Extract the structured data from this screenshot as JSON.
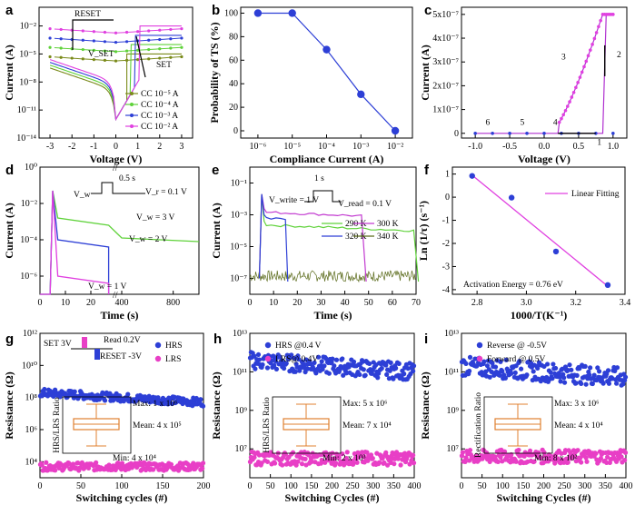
{
  "panels": {
    "a": "a",
    "b": "b",
    "c": "c",
    "d": "d",
    "e": "e",
    "f": "f",
    "g": "g",
    "h": "h",
    "i": "i"
  },
  "chart_data": [
    {
      "id": "a",
      "type": "line",
      "xlabel": "Voltage (V)",
      "ylabel": "Current (A)",
      "xlim": [
        -3.5,
        3.5
      ],
      "ylim_log10": [
        -14,
        0
      ],
      "xticks": [
        "-3",
        "-2",
        "-1",
        "0",
        "1",
        "2",
        "3"
      ],
      "yticks": [
        "10⁻¹⁴",
        "10⁻¹¹",
        "10⁻⁸",
        "10⁻⁵",
        "10⁻²"
      ],
      "annotations": [
        "RESET",
        "SET",
        "V_SET"
      ],
      "series": [
        {
          "name": "CC 10⁻⁵ A",
          "color": "#7a8a1a",
          "set_voltage": 0.5,
          "cc_log10": -5
        },
        {
          "name": "CC 10⁻⁴ A",
          "color": "#5fd23a",
          "set_voltage": 0.7,
          "cc_log10": -4
        },
        {
          "name": "CC 10⁻³ A",
          "color": "#2d3fd6",
          "set_voltage": 0.9,
          "cc_log10": -3
        },
        {
          "name": "CC 10⁻² A",
          "color": "#e040e0",
          "set_voltage": 1.1,
          "cc_log10": -2
        }
      ]
    },
    {
      "id": "b",
      "type": "line",
      "xlabel": "Compliance Current (A)",
      "ylabel": "Probability of TS (%)",
      "xtick_labels": [
        "10⁻⁶",
        "10⁻⁵",
        "10⁻⁴",
        "10⁻³",
        "10⁻²"
      ],
      "yticks": [
        "0",
        "20",
        "40",
        "60",
        "80",
        "100"
      ],
      "ylim": [
        0,
        100
      ],
      "x_log10": [
        -6,
        -5,
        -4,
        -3,
        -2
      ],
      "y": [
        100,
        100,
        69,
        31,
        0
      ]
    },
    {
      "id": "c",
      "type": "line",
      "xlabel": "Voltage (V)",
      "ylabel": "Current (A)",
      "xlim": [
        -1.2,
        1.2
      ],
      "ylim": [
        -2e-08,
        5.3e-07
      ],
      "xticks": [
        "-1.0",
        "-0.5",
        "0.0",
        "0.5",
        "1.0"
      ],
      "yticks": [
        "0",
        "1x10⁻⁷",
        "2x10⁻⁷",
        "3x10⁻⁷",
        "4x10⁻⁷",
        "5x10⁻⁷"
      ],
      "arrows": [
        "1",
        "2",
        "3",
        "4",
        "5",
        "6"
      ],
      "compliance": 5e-07,
      "switch_on_voltage": 0.9,
      "switch_off_voltage": 0.2
    },
    {
      "id": "d",
      "type": "line",
      "xlabel": "Time (s)",
      "ylabel": "Current (A)",
      "ylim_log10": [
        -7,
        0
      ],
      "yticks": [
        "10⁰",
        "10⁻²",
        "10⁻⁴",
        "10⁻⁶"
      ],
      "xticks": [
        "0",
        "10",
        "20",
        "400",
        "800"
      ],
      "inset_text": [
        "0.5 s",
        "V_w",
        "V_r = 0.1 V"
      ],
      "series": [
        {
          "name": "V_w = 3 V",
          "color": "#5fd23a",
          "plateau_log10": -3.2,
          "tail_log10": -3.9
        },
        {
          "name": "V_w = 2 V",
          "color": "#2d3fd6",
          "plateau_log10": -4.4
        },
        {
          "name": "V_w = 1 V",
          "color": "#e040e0",
          "plateau_log10": -6.4
        }
      ]
    },
    {
      "id": "e",
      "type": "line",
      "xlabel": "Time (s)",
      "ylabel": "Current (A)",
      "xlim": [
        0,
        70
      ],
      "ylim_log10": [
        -8,
        0
      ],
      "xticks": [
        "0",
        "10",
        "20",
        "30",
        "40",
        "50",
        "60",
        "70"
      ],
      "yticks": [
        "10⁻¹",
        "10⁻³",
        "10⁻⁵",
        "10⁻⁷"
      ],
      "inset_text": [
        "1 s",
        "V_write = 1 V",
        "V_read = 0.1 V"
      ],
      "series": [
        {
          "name": "290 K",
          "color": "#5fd23a",
          "end_time": 70
        },
        {
          "name": "300 K",
          "color": "#c23ad0",
          "end_time": 48
        },
        {
          "name": "320 K",
          "color": "#2d3fd6",
          "end_time": 15
        },
        {
          "name": "340 K",
          "color": "#5a6a1a",
          "end_time": 6
        }
      ]
    },
    {
      "id": "f",
      "type": "scatter",
      "xlabel": "1000/T(K⁻¹)",
      "ylabel": "Ln (1/τ) (s⁻¹)",
      "xlim": [
        2.7,
        3.4
      ],
      "ylim": [
        -4.2,
        1.3
      ],
      "xticks": [
        "2.8",
        "3.0",
        "3.2",
        "3.4"
      ],
      "yticks": [
        "-4",
        "-3",
        "-2",
        "-1",
        "0",
        "1"
      ],
      "x": [
        2.78,
        2.94,
        3.12,
        3.33
      ],
      "y": [
        0.92,
        -0.02,
        -2.35,
        -3.8
      ],
      "fit_name": "Linear Fitting",
      "annotation": "Activation Energy = 0.76 eV"
    },
    {
      "id": "g",
      "type": "scatter",
      "xlabel": "Switching cycles (#)",
      "ylabel": "Resistance (Ω)",
      "xlim": [
        0,
        200
      ],
      "ylim_log10": [
        3,
        12
      ],
      "xticks": [
        "0",
        "50",
        "100",
        "150",
        "200"
      ],
      "yticks": [
        "10⁴",
        "10⁶",
        "10⁸",
        "10¹⁰",
        "10¹²"
      ],
      "series": [
        {
          "name": "HRS",
          "color": "#2d3fd6",
          "level_log10": 8.3,
          "spread": 0.25
        },
        {
          "name": "LRS",
          "color": "#e83fc6",
          "level_log10": 3.7,
          "spread": 0.25
        }
      ],
      "labels": [
        "SET 3V",
        "Read 0.2V",
        "RESET -3V"
      ],
      "inset": {
        "ylabel": "HRS/LRS Ratio",
        "max": "Max: 1 x 10⁶",
        "mean": "Mean: 4 x 10⁵",
        "min": "Min: 4 x 10⁴"
      }
    },
    {
      "id": "h",
      "type": "scatter",
      "xlabel": "Switching Cycles (#)",
      "ylabel": "Resistance (Ω)",
      "xlim": [
        0,
        400
      ],
      "ylim_log10": [
        5.5,
        13
      ],
      "xticks": [
        "0",
        "50",
        "100",
        "150",
        "200",
        "250",
        "300",
        "350",
        "400"
      ],
      "yticks": [
        "10⁷",
        "10⁹",
        "10¹¹",
        "10¹³"
      ],
      "series": [
        {
          "name": "HRS @0.4 V",
          "color": "#2d3fd6",
          "level_log10": 11.6,
          "spread": 0.45
        },
        {
          "name": "LRS@ 0.4V",
          "color": "#e83fc6",
          "level_log10": 6.5,
          "spread": 0.35
        }
      ],
      "inset": {
        "ylabel": "HRS/LRS Ratio",
        "max": "Max: 5 x 10⁶",
        "mean": "Mean: 7 x 10⁴",
        "min": "Min: 2 x 10³"
      }
    },
    {
      "id": "i",
      "type": "scatter",
      "xlabel": "Switching Cycles (#)",
      "ylabel": "Resistance (Ω)",
      "xlim": [
        0,
        400
      ],
      "ylim_log10": [
        5.5,
        13
      ],
      "xticks": [
        "0",
        "50",
        "100",
        "150",
        "200",
        "250",
        "300",
        "350",
        "400"
      ],
      "yticks": [
        "10⁷",
        "10⁹",
        "10¹¹",
        "10¹³"
      ],
      "series": [
        {
          "name": "Reverse  @ -0.5V",
          "color": "#2d3fd6",
          "level_log10": 11.3,
          "spread": 0.5
        },
        {
          "name": "Forward @ 0.5V",
          "color": "#e83fc6",
          "level_log10": 6.6,
          "spread": 0.35
        }
      ],
      "inset": {
        "ylabel": "Rectification Ratio",
        "max": "Max: 3 x 10⁶",
        "mean": "Mean: 4 x 10⁴",
        "min": "Min: 8 x 10²"
      }
    }
  ]
}
